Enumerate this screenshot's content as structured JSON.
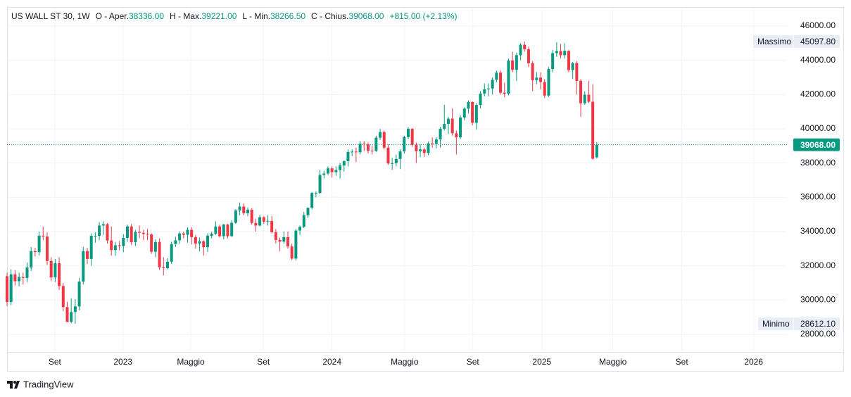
{
  "header": {
    "symbol": "US WALL ST 30, 1W",
    "fields": [
      {
        "label": "O - Aper.",
        "value": "38336.00"
      },
      {
        "label": "H - Max.",
        "value": "39221.00"
      },
      {
        "label": "L - Min.",
        "value": "38266.50"
      },
      {
        "label": "C - Chius.",
        "value": "39068.00"
      }
    ],
    "change": "+815.00 (+2.13%)"
  },
  "chart_data": {
    "type": "candlestick",
    "up_color": "#089981",
    "down_color": "#f23645",
    "grid": true,
    "xlim": [
      0,
      194.4
    ],
    "xticks": [
      {
        "value": 11.9,
        "label": "Set"
      },
      {
        "value": 28.9,
        "label": "2023"
      },
      {
        "value": 45.8,
        "label": "Maggio"
      },
      {
        "value": 63.9,
        "label": "Set"
      },
      {
        "value": 81,
        "label": "2024"
      },
      {
        "value": 99.1,
        "label": "Maggio"
      },
      {
        "value": 116.1,
        "label": "Set"
      },
      {
        "value": 133.3,
        "label": "2025"
      },
      {
        "value": 151,
        "label": "Maggio"
      },
      {
        "value": 168.2,
        "label": "Set"
      },
      {
        "value": 186.1,
        "label": "2026"
      }
    ],
    "ylim": [
      26970,
      47110
    ],
    "yticks": [
      {
        "value": 28000,
        "label": "28000.00"
      },
      {
        "value": 30000,
        "label": "30000.00"
      },
      {
        "value": 32000,
        "label": "32000.00"
      },
      {
        "value": 34000,
        "label": "34000.00"
      },
      {
        "value": 36000,
        "label": "36000.00"
      },
      {
        "value": 38000,
        "label": "38000.00"
      },
      {
        "value": 40000,
        "label": "40000.00"
      },
      {
        "value": 42000,
        "label": "42000.00"
      },
      {
        "value": 44000,
        "label": "44000.00"
      },
      {
        "value": 46000,
        "label": "46000.00"
      }
    ],
    "high_marker": {
      "label": "Massimo",
      "value": 45097.8,
      "value_label": "45097.80"
    },
    "low_marker": {
      "label": "Minimo",
      "value": 28612.1,
      "value_label": "28612.10"
    },
    "last_price": {
      "value": 39068,
      "label": "39068.00"
    },
    "ohlc": [
      [
        31390,
        31600,
        29650,
        29890
      ],
      [
        29890,
        31800,
        29700,
        31500
      ],
      [
        31500,
        31750,
        30850,
        31100
      ],
      [
        31100,
        31600,
        30800,
        31340
      ],
      [
        31340,
        31600,
        30900,
        31290
      ],
      [
        31290,
        32200,
        31050,
        31900
      ],
      [
        31900,
        33100,
        31700,
        32850
      ],
      [
        32850,
        33050,
        32550,
        32800
      ],
      [
        32800,
        34000,
        32600,
        33760
      ],
      [
        33760,
        34280,
        33500,
        33710
      ],
      [
        33710,
        33950,
        32050,
        32280
      ],
      [
        32280,
        32500,
        31100,
        31320
      ],
      [
        31320,
        32400,
        31050,
        32150
      ],
      [
        32150,
        32500,
        30600,
        30820
      ],
      [
        30820,
        31000,
        29350,
        29590
      ],
      [
        29590,
        29900,
        28700,
        28730
      ],
      [
        28730,
        30100,
        28650,
        29300
      ],
      [
        29300,
        30050,
        28612.1,
        29630
      ],
      [
        29630,
        31300,
        29400,
        31080
      ],
      [
        31080,
        33100,
        30900,
        32860
      ],
      [
        32860,
        33050,
        32100,
        32400
      ],
      [
        32400,
        33900,
        32000,
        33750
      ],
      [
        33750,
        33950,
        33350,
        33750
      ],
      [
        33750,
        34550,
        33500,
        34350
      ],
      [
        34350,
        34600,
        33800,
        34430
      ],
      [
        34430,
        34500,
        33300,
        33480
      ],
      [
        33480,
        34300,
        32600,
        32920
      ],
      [
        32920,
        33400,
        32580,
        33200
      ],
      [
        33200,
        33450,
        32900,
        33150
      ],
      [
        33150,
        33850,
        32800,
        33630
      ],
      [
        33630,
        34400,
        33400,
        34300
      ],
      [
        34300,
        34450,
        33200,
        33380
      ],
      [
        33380,
        34100,
        33150,
        33980
      ],
      [
        33980,
        34350,
        33600,
        33930
      ],
      [
        33930,
        34100,
        33500,
        33870
      ],
      [
        33870,
        34150,
        33500,
        33830
      ],
      [
        33830,
        33900,
        32700,
        32820
      ],
      [
        32820,
        33550,
        32500,
        33390
      ],
      [
        33390,
        33600,
        31750,
        31910
      ],
      [
        31910,
        32500,
        31450,
        31860
      ],
      [
        31860,
        32450,
        31800,
        32240
      ],
      [
        32240,
        33400,
        32100,
        33270
      ],
      [
        33270,
        33700,
        33100,
        33490
      ],
      [
        33490,
        34000,
        33300,
        33890
      ],
      [
        33890,
        34000,
        33600,
        33810
      ],
      [
        33810,
        34250,
        33350,
        34100
      ],
      [
        34100,
        34250,
        33250,
        33670
      ],
      [
        33670,
        33800,
        33000,
        33300
      ],
      [
        33300,
        33650,
        32850,
        33430
      ],
      [
        33430,
        33500,
        32600,
        33090
      ],
      [
        33090,
        33900,
        32800,
        33760
      ],
      [
        33760,
        34000,
        33600,
        33880
      ],
      [
        33880,
        34600,
        33800,
        34300
      ],
      [
        34300,
        34400,
        33650,
        33730
      ],
      [
        33730,
        34450,
        33550,
        34410
      ],
      [
        34410,
        34450,
        33600,
        33730
      ],
      [
        33730,
        34650,
        33700,
        34510
      ],
      [
        34510,
        35300,
        34450,
        35230
      ],
      [
        35230,
        35700,
        34950,
        35460
      ],
      [
        35460,
        35650,
        34950,
        35070
      ],
      [
        35070,
        35400,
        34900,
        35280
      ],
      [
        35280,
        35350,
        34400,
        34500
      ],
      [
        34500,
        34750,
        34000,
        34350
      ],
      [
        34350,
        34980,
        34300,
        34840
      ],
      [
        34840,
        34900,
        34450,
        34580
      ],
      [
        34580,
        34950,
        34350,
        34620
      ],
      [
        34620,
        34900,
        33900,
        33960
      ],
      [
        33960,
        34150,
        33300,
        33510
      ],
      [
        33510,
        33650,
        32850,
        33410
      ],
      [
        33410,
        34000,
        33300,
        33670
      ],
      [
        33670,
        34000,
        33000,
        33130
      ],
      [
        33130,
        33300,
        32330,
        32420
      ],
      [
        32420,
        34150,
        32300,
        34060
      ],
      [
        34060,
        34350,
        33800,
        34280
      ],
      [
        34280,
        35150,
        34200,
        34950
      ],
      [
        34950,
        35400,
        34800,
        35390
      ],
      [
        35390,
        36300,
        35300,
        36250
      ],
      [
        36250,
        36350,
        36000,
        36250
      ],
      [
        36250,
        37600,
        36200,
        37310
      ],
      [
        37310,
        37550,
        37100,
        37390
      ],
      [
        37390,
        37800,
        37300,
        37690
      ],
      [
        37690,
        37800,
        37150,
        37470
      ],
      [
        37470,
        37800,
        37250,
        37590
      ],
      [
        37590,
        38000,
        37100,
        37860
      ],
      [
        37860,
        38150,
        37500,
        38110
      ],
      [
        38110,
        38800,
        37800,
        38650
      ],
      [
        38650,
        38800,
        38400,
        38670
      ],
      [
        38670,
        38900,
        38050,
        38630
      ],
      [
        38630,
        39300,
        38500,
        39130
      ],
      [
        39130,
        39280,
        38700,
        39090
      ],
      [
        39090,
        39200,
        38550,
        38720
      ],
      [
        38720,
        39000,
        38500,
        38710
      ],
      [
        38710,
        39600,
        38650,
        39480
      ],
      [
        39480,
        40000,
        39350,
        39810
      ],
      [
        39810,
        39900,
        38800,
        38900
      ],
      [
        38900,
        39100,
        37900,
        37980
      ],
      [
        37980,
        38300,
        37600,
        37990
      ],
      [
        37990,
        38500,
        37800,
        38240
      ],
      [
        38240,
        38800,
        37650,
        38680
      ],
      [
        38680,
        39600,
        38550,
        39510
      ],
      [
        39510,
        40100,
        39400,
        40000
      ],
      [
        40000,
        40050,
        38950,
        39070
      ],
      [
        39070,
        39200,
        38000,
        38690
      ],
      [
        38690,
        39100,
        38350,
        38800
      ],
      [
        38800,
        38900,
        38350,
        38590
      ],
      [
        38590,
        39250,
        38450,
        39150
      ],
      [
        39150,
        39500,
        38900,
        39120
      ],
      [
        39120,
        39500,
        38850,
        39380
      ],
      [
        39380,
        40100,
        38900,
        40000
      ],
      [
        40000,
        41400,
        39900,
        40290
      ],
      [
        40290,
        40700,
        39700,
        40590
      ],
      [
        40590,
        41200,
        39600,
        39740
      ],
      [
        39740,
        39900,
        38500,
        39500
      ],
      [
        39500,
        40800,
        39400,
        40660
      ],
      [
        40660,
        41250,
        40500,
        41180
      ],
      [
        41180,
        41650,
        40900,
        41560
      ],
      [
        41560,
        41600,
        40200,
        40350
      ],
      [
        40350,
        41500,
        39950,
        41390
      ],
      [
        41390,
        42200,
        41200,
        42060
      ],
      [
        42060,
        42650,
        41900,
        42310
      ],
      [
        42310,
        42650,
        41900,
        42350
      ],
      [
        42350,
        43000,
        42000,
        42860
      ],
      [
        42860,
        43400,
        42700,
        43280
      ],
      [
        43280,
        43400,
        42000,
        42110
      ],
      [
        42110,
        42700,
        41850,
        42050
      ],
      [
        42050,
        44100,
        41950,
        43990
      ],
      [
        43990,
        44500,
        43300,
        43440
      ],
      [
        43440,
        44450,
        42800,
        44300
      ],
      [
        44300,
        45000,
        44000,
        44910
      ],
      [
        44910,
        45097.8,
        44500,
        44640
      ],
      [
        44640,
        44800,
        43600,
        43830
      ],
      [
        43830,
        43950,
        42200,
        42840
      ],
      [
        42840,
        43300,
        42600,
        42990
      ],
      [
        42990,
        43300,
        42300,
        42730
      ],
      [
        42730,
        42900,
        41800,
        41940
      ],
      [
        41940,
        43600,
        41850,
        43490
      ],
      [
        43490,
        44600,
        43300,
        44420
      ],
      [
        44420,
        45050,
        44200,
        44540
      ],
      [
        44540,
        44950,
        44100,
        44300
      ],
      [
        44300,
        45000,
        44100,
        44550
      ],
      [
        44550,
        44600,
        43300,
        43430
      ],
      [
        43430,
        43900,
        42900,
        43840
      ],
      [
        43840,
        43950,
        42000,
        42800
      ],
      [
        42800,
        42900,
        40700,
        41490
      ],
      [
        41490,
        42200,
        41400,
        41990
      ],
      [
        41990,
        42800,
        41500,
        41580
      ],
      [
        41580,
        42600,
        38200,
        38253
      ],
      [
        38336,
        39221,
        38266.5,
        39068
      ]
    ]
  }
}
